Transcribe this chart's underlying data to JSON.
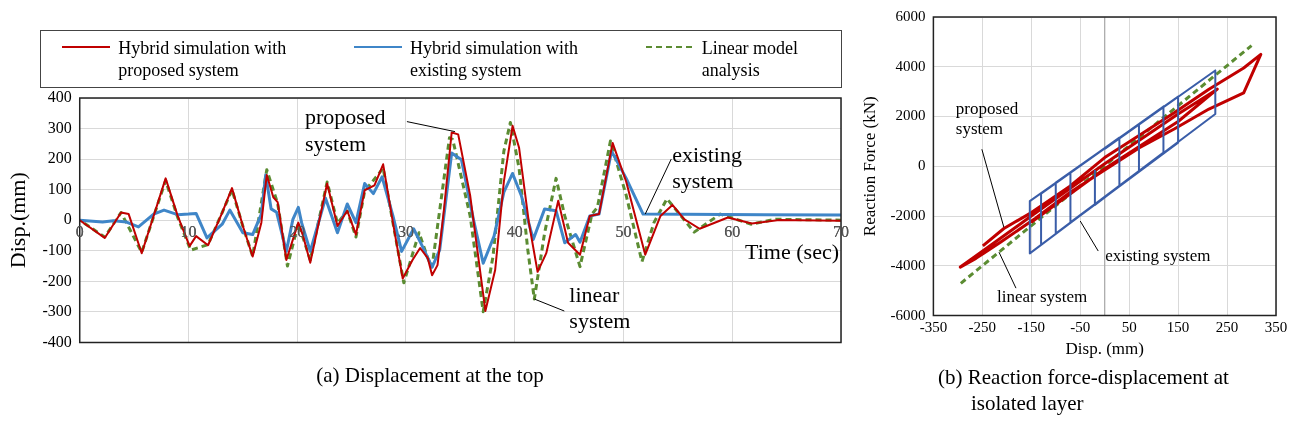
{
  "chart_data": [
    {
      "type": "line",
      "title": "(a)   Displacement at the top",
      "xlabel": "Time (sec)",
      "ylabel": "Disp.(mm)",
      "xlim": [
        0,
        70
      ],
      "xticks": [
        0,
        10,
        20,
        30,
        40,
        50,
        60,
        70
      ],
      "ylim": [
        -400,
        400
      ],
      "yticks": [
        -400,
        -300,
        -200,
        -100,
        0,
        100,
        200,
        300,
        400
      ],
      "grid": true,
      "legend": "top",
      "series": [
        {
          "name": "Hybrid simulation with proposed system",
          "color": "#c00000",
          "x": [
            0,
            2.3,
            3.8,
            4.5,
            5.7,
            7.9,
            9,
            10.1,
            10.7,
            11.8,
            13.1,
            14,
            15,
            15.9,
            16.7,
            17.2,
            17.8,
            18.2,
            19,
            20.1,
            20.5,
            21.2,
            22.75,
            23.7,
            24.6,
            25.4,
            26.2,
            27.1,
            27.9,
            28.8,
            29.7,
            30.6,
            31.3,
            32,
            32.4,
            32.9,
            33.5,
            34.2,
            34.8,
            35.9,
            37.3,
            38.2,
            39,
            39.8,
            40.4,
            41.3,
            42.1,
            42.9,
            44,
            44.9,
            46,
            46.9,
            47.75,
            49,
            50.25,
            52,
            53.4,
            54.5,
            55.6,
            57,
            59.6,
            61.8,
            64.3,
            70
          ],
          "values": [
            0,
            -58,
            25,
            20,
            -108,
            137,
            15,
            -85,
            -52,
            -82,
            25,
            105,
            -19,
            -119,
            -8,
            148,
            75,
            59,
            -130,
            -8,
            -47,
            -139,
            120,
            -19,
            31,
            -47,
            98,
            114,
            183,
            -8,
            -191,
            -130,
            -91,
            -124,
            -180,
            -147,
            37,
            287,
            281,
            81,
            -297,
            -163,
            126,
            309,
            237,
            -8,
            -169,
            -108,
            64,
            -74,
            -113,
            14,
            20,
            253,
            126,
            -113,
            14,
            50,
            3,
            -28,
            9,
            -11,
            1,
            -2
          ]
        },
        {
          "name": "Hybrid simulation with existing system",
          "color": "#3f86c8",
          "x": [
            0,
            2.1,
            3.1,
            4.3,
            5.4,
            6.8,
            7.75,
            9,
            10,
            10.7,
            11.7,
            13.1,
            13.8,
            15,
            15.9,
            16.7,
            17.1,
            17.6,
            18.1,
            19,
            19.6,
            20.1,
            20.4,
            21.2,
            22.6,
            23.7,
            24.6,
            25.4,
            26.2,
            27,
            27.8,
            28.8,
            29.6,
            30.7,
            31.5,
            32.4,
            33.1,
            34.2,
            35.1,
            36.2,
            37.1,
            38.1,
            39,
            39.8,
            40.6,
            41.7,
            42.75,
            43.8,
            44.6,
            45.6,
            46,
            46.9,
            47.75,
            48.9,
            50.25,
            51.8,
            70
          ],
          "values": [
            0,
            -6,
            -2,
            -6,
            -22,
            20,
            33,
            18,
            20,
            22,
            -58,
            -13,
            33,
            -41,
            -47,
            20,
            148,
            37,
            26,
            -102,
            3,
            42,
            -8,
            -102,
            72,
            -41,
            53,
            -8,
            120,
            87,
            142,
            14,
            -102,
            -28,
            -85,
            -154,
            -97,
            220,
            198,
            3,
            -141,
            -52,
            92,
            153,
            81,
            -63,
            37,
            31,
            -74,
            -47,
            -72,
            14,
            20,
            226,
            137,
            20,
            17
          ]
        },
        {
          "name": "Linear model analysis",
          "color": "#5b8c32",
          "line_style": "dashed",
          "x": [
            0,
            2.3,
            3.8,
            5.7,
            7.9,
            9,
            10.2,
            11.8,
            13.1,
            14,
            15,
            15.9,
            17.2,
            18.2,
            19.1,
            20.1,
            21.2,
            22.75,
            23.7,
            24.6,
            25.4,
            26.2,
            27.9,
            28.8,
            29.8,
            31.2,
            32,
            32.4,
            34,
            34.3,
            35.9,
            37.1,
            38,
            39,
            39.6,
            40.4,
            41.2,
            41.8,
            42.75,
            43.8,
            44.6,
            46,
            47.1,
            47.6,
            48.8,
            50.25,
            51.7,
            52.8,
            54,
            56.5,
            58.9,
            61.7,
            64,
            70
          ],
          "values": [
            0,
            -55,
            25,
            -105,
            130,
            10,
            -98,
            -80,
            25,
            100,
            -20,
            -118,
            165,
            55,
            -150,
            -10,
            -130,
            125,
            -10,
            30,
            -55,
            95,
            170,
            -8,
            -205,
            -41,
            -124,
            -152,
            270,
            264,
            14,
            -300,
            -119,
            226,
            320,
            170,
            -97,
            -258,
            -41,
            137,
            14,
            -152,
            20,
            42,
            259,
            81,
            -136,
            -8,
            70,
            -39,
            20,
            -13,
            3,
            0
          ]
        }
      ],
      "annotations": [
        {
          "text": "proposed system",
          "x": 34.5,
          "y": 290
        },
        {
          "text": "existing system",
          "x": 52,
          "y": 20
        },
        {
          "text": "linear system",
          "x": 41.8,
          "y": -258
        }
      ]
    },
    {
      "type": "line",
      "title": "(b) Reaction force-displacement at isolated layer",
      "xlabel": "Disp. (mm)",
      "ylabel": "Reaction Force (kN)",
      "xlim": [
        -350,
        350
      ],
      "xticks": [
        -350,
        -250,
        -150,
        -50,
        50,
        150,
        250,
        350
      ],
      "ylim": [
        -6000,
        6000
      ],
      "yticks": [
        -6000,
        -4000,
        -2000,
        0,
        2000,
        4000,
        6000
      ],
      "grid": true,
      "ref_lines": [
        {
          "axis": "x",
          "value": 0,
          "color": "#a6a6a6"
        }
      ],
      "series": [
        {
          "color": "#3a5da8",
          "x": [
            0,
            226,
            226,
            -153,
            -153,
            150,
            150,
            -130,
            -130,
            120,
            120,
            -100,
            -100,
            70,
            70,
            -70,
            -70,
            30,
            30,
            -20,
            -20
          ],
          "values": [
            700,
            3850,
            2100,
            -3500,
            -1400,
            2800,
            950,
            -3150,
            -1100,
            2400,
            550,
            -2700,
            -650,
            1700,
            -200,
            -2250,
            -250,
            1150,
            -800,
            -1550,
            -150
          ]
        },
        {
          "color": "#c00000",
          "x": [
            -249,
            -206,
            -149,
            -71,
            0,
            71,
            142,
            213,
            284,
            319,
            284,
            213,
            142,
            71,
            0,
            -71,
            -142,
            -213,
            -263,
            -295,
            -150,
            0,
            150,
            230,
            150,
            0,
            -150
          ],
          "values": [
            -3200,
            -2500,
            -1850,
            -800,
            350,
            1250,
            2150,
            3100,
            3950,
            4500,
            2950,
            2300,
            1500,
            750,
            -150,
            -1050,
            -2100,
            -3050,
            -3700,
            -4050,
            -2000,
            100,
            2100,
            3100,
            1800,
            -100,
            -2250
          ]
        },
        {
          "color": "#5b8c32",
          "line_style": "dashed",
          "x": [
            -300,
            300
          ],
          "values": [
            -4800,
            4850
          ]
        }
      ],
      "annotations": [
        {
          "text": "proposed system",
          "x": -206,
          "y": -2450
        },
        {
          "text": "existing system",
          "x": -50,
          "y": -2200
        },
        {
          "text": "linear system",
          "x": -216,
          "y": -3450
        }
      ]
    }
  ]
}
